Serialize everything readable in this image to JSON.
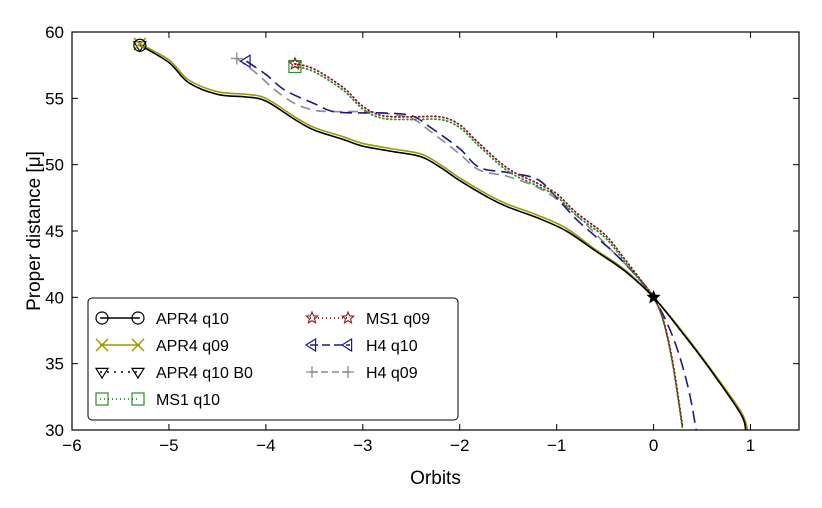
{
  "chart_data": {
    "type": "line",
    "xlabel": "Orbits",
    "ylabel": "Proper distance [μ]",
    "xlim": [
      -6,
      1.5
    ],
    "ylim": [
      30,
      60
    ],
    "xticks": [
      "−6",
      "−5",
      "−4",
      "−3",
      "−2",
      "−1",
      "0",
      "1"
    ],
    "yticks": [
      "30",
      "35",
      "40",
      "45",
      "50",
      "55",
      "60"
    ],
    "grid": false,
    "legend_position": "bottom-left",
    "legend_columns": 2,
    "common_point": {
      "x": 0,
      "y": 40
    },
    "series": [
      {
        "name": "APR4 q10",
        "color": "#000000",
        "dash": "",
        "marker": "circle",
        "x": [
          -5.3,
          -5.0,
          -4.8,
          -4.5,
          -4.2,
          -4.0,
          -3.7,
          -3.5,
          -3.2,
          -3.0,
          -2.7,
          -2.4,
          -2.2,
          -2.0,
          -1.7,
          -1.5,
          -1.2,
          -0.9,
          -0.6,
          -0.3,
          0.0,
          0.3,
          0.6,
          0.9,
          0.95
        ],
        "y": [
          59.0,
          57.7,
          56.2,
          55.3,
          55.1,
          54.8,
          53.4,
          52.6,
          51.9,
          51.4,
          51.0,
          50.6,
          49.8,
          48.8,
          47.5,
          46.8,
          46.0,
          45.0,
          43.5,
          42.0,
          40.0,
          37.3,
          34.4,
          31.2,
          30.0
        ]
      },
      {
        "name": "APR4 q09",
        "color": "#9a9a00",
        "dash": "",
        "marker": "x",
        "x": [
          -5.3,
          -5.0,
          -4.8,
          -4.5,
          -4.2,
          -4.0,
          -3.7,
          -3.5,
          -3.2,
          -3.0,
          -2.7,
          -2.4,
          -2.2,
          -2.0,
          -1.7,
          -1.5,
          -1.2,
          -0.9,
          -0.6,
          -0.3,
          0.0,
          0.3,
          0.6,
          0.9,
          0.97
        ],
        "y": [
          59.1,
          57.9,
          56.4,
          55.5,
          55.3,
          55.0,
          53.6,
          52.8,
          52.1,
          51.6,
          51.2,
          50.8,
          50.0,
          49.0,
          47.7,
          47.0,
          46.2,
          45.2,
          43.6,
          42.1,
          40.0,
          37.4,
          34.5,
          31.4,
          30.0
        ]
      },
      {
        "name": "APR4 q10 B0",
        "color": "#000000",
        "dash": "2,5",
        "marker": "triangle-down",
        "x": [
          -5.3,
          -5.2
        ],
        "y": [
          59.0,
          58.7
        ]
      },
      {
        "name": "MS1 q10",
        "color": "#2e8b2e",
        "dash": "1,3",
        "marker": "square",
        "x": [
          -3.7,
          -3.5,
          -3.2,
          -3.0,
          -2.8,
          -2.5,
          -2.2,
          -2.0,
          -1.8,
          -1.5,
          -1.2,
          -1.0,
          -0.8,
          -0.5,
          -0.3,
          -0.1,
          0.0,
          0.1,
          0.2,
          0.3
        ],
        "y": [
          57.4,
          57.0,
          55.6,
          54.2,
          53.5,
          53.4,
          53.4,
          52.8,
          51.4,
          49.5,
          48.4,
          47.6,
          46.2,
          44.5,
          42.7,
          40.9,
          40.0,
          38.2,
          34.8,
          30.0
        ]
      },
      {
        "name": "MS1 q09",
        "color": "#8b1a1a",
        "dash": "1,3",
        "marker": "star",
        "x": [
          -3.7,
          -3.5,
          -3.2,
          -3.0,
          -2.8,
          -2.5,
          -2.2,
          -2.0,
          -1.8,
          -1.5,
          -1.2,
          -1.0,
          -0.8,
          -0.5,
          -0.3,
          -0.1,
          0.0,
          0.1,
          0.2,
          0.3
        ],
        "y": [
          57.6,
          57.2,
          55.8,
          54.4,
          53.7,
          53.6,
          53.6,
          53.0,
          51.6,
          49.7,
          48.6,
          47.8,
          46.4,
          44.7,
          42.9,
          41.0,
          40.0,
          38.3,
          35.0,
          30.2
        ]
      },
      {
        "name": "H4 q10",
        "color": "#1a1a8c",
        "dash": "12,6",
        "marker": "triangle-left",
        "x": [
          -4.2,
          -4.0,
          -3.8,
          -3.5,
          -3.3,
          -3.0,
          -2.8,
          -2.5,
          -2.3,
          -2.0,
          -1.8,
          -1.5,
          -1.2,
          -1.0,
          -0.8,
          -0.6,
          -0.4,
          -0.2,
          0.0,
          0.2,
          0.35,
          0.44
        ],
        "y": [
          57.8,
          56.8,
          55.6,
          54.6,
          54.0,
          53.9,
          53.9,
          53.7,
          52.8,
          51.2,
          49.8,
          49.4,
          48.9,
          47.5,
          45.9,
          44.6,
          43.3,
          41.8,
          40.0,
          37.0,
          33.4,
          30.0
        ]
      },
      {
        "name": "H4 q09",
        "color": "#8c8c8c",
        "dash": "10,6",
        "marker": "plus",
        "x": [
          -4.3,
          -4.1,
          -3.9,
          -3.7,
          -3.5,
          -3.3,
          -3.0,
          -2.8,
          -2.5,
          -2.3,
          -2.0,
          -1.8,
          -1.5,
          -1.2,
          -1.0,
          -0.8,
          -0.6,
          -0.4,
          -0.2,
          0.0
        ],
        "y": [
          58.0,
          56.9,
          55.6,
          54.6,
          54.1,
          54.0,
          54.0,
          53.9,
          53.5,
          52.5,
          50.8,
          49.6,
          49.1,
          48.3,
          47.4,
          46.2,
          44.8,
          43.3,
          41.8,
          40.0
        ]
      }
    ]
  }
}
